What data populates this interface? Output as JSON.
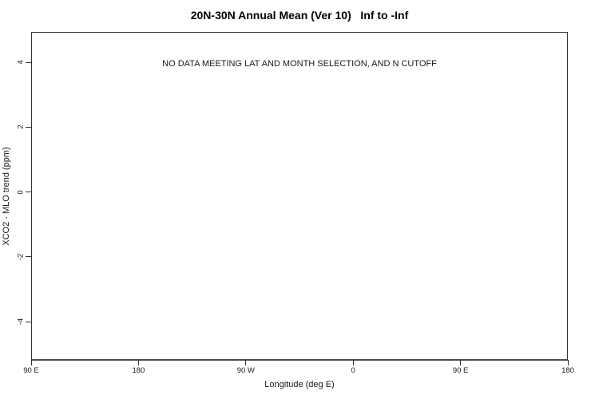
{
  "chart_data": {
    "type": "line",
    "title": "20N-30N Annual Mean (Ver 10)   Inf to -Inf",
    "xlabel": "Longitude (deg E)",
    "ylabel": "XCO2 - MLO trend (ppm)",
    "x_ticks": [
      "90 E",
      "180",
      "90 W",
      "0",
      "90 E",
      "180"
    ],
    "y_ticks": [
      "4",
      "2",
      "0",
      "-2",
      "-4"
    ],
    "ylim": [
      -5,
      5
    ],
    "xlim_note": "longitude axis wrapping from 90 E through 180, 90 W, 0, 90 E to 180",
    "series": [],
    "grid": false,
    "legend": false,
    "annotation": "NO DATA MEETING LAT AND MONTH SELECTION, AND N CUTOFF",
    "colors": {
      "axis_line": "#333333",
      "text": "#000000",
      "background": "#ffffff"
    }
  }
}
